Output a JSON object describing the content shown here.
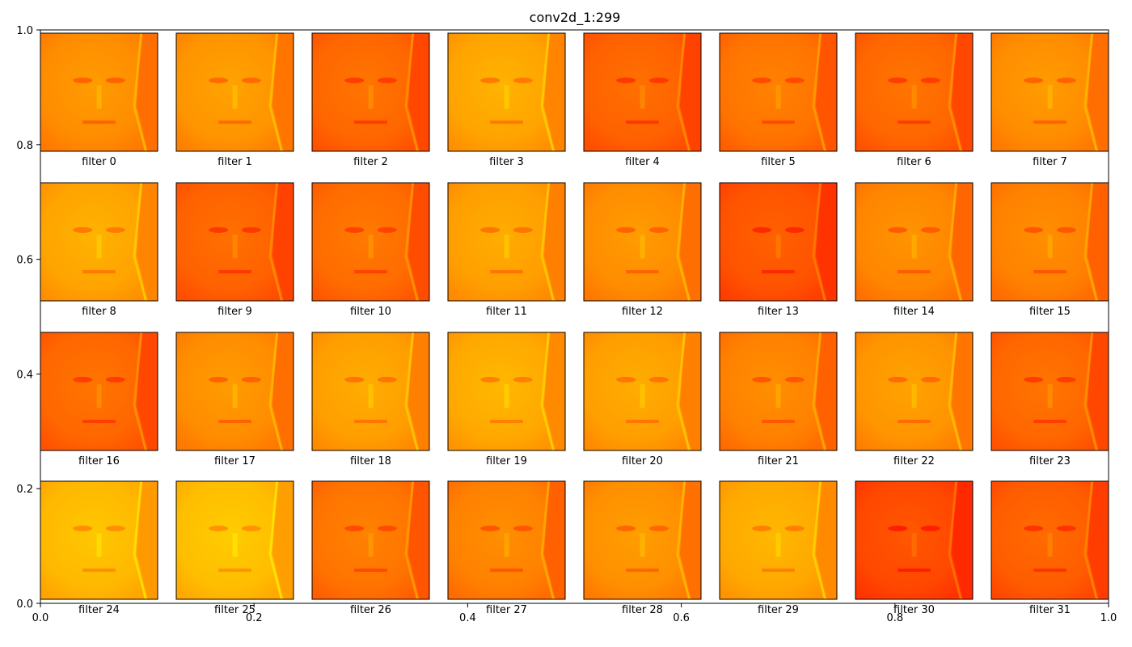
{
  "chart_data": {
    "type": "heatmap",
    "title": "conv2d_1:299",
    "xlabel": "",
    "ylabel": "",
    "xlim": [
      0.0,
      1.0
    ],
    "ylim": [
      0.0,
      1.0
    ],
    "x_ticks": [
      "0.0",
      "0.2",
      "0.4",
      "0.6",
      "0.8",
      "1.0"
    ],
    "y_ticks": [
      "0.0",
      "0.2",
      "0.4",
      "0.6",
      "0.8",
      "1.0"
    ],
    "grid": false,
    "colormap": "autumn",
    "colors": {
      "low": "#ff0000",
      "high": "#ffff00"
    },
    "subplot_rows": 4,
    "subplot_cols": 8,
    "panels": [
      {
        "label": "filter 0",
        "mean_level": 0.55
      },
      {
        "label": "filter 1",
        "mean_level": 0.58
      },
      {
        "label": "filter 2",
        "mean_level": 0.4
      },
      {
        "label": "filter 3",
        "mean_level": 0.64
      },
      {
        "label": "filter 4",
        "mean_level": 0.38
      },
      {
        "label": "filter 5",
        "mean_level": 0.45
      },
      {
        "label": "filter 6",
        "mean_level": 0.4
      },
      {
        "label": "filter 7",
        "mean_level": 0.55
      },
      {
        "label": "filter 8",
        "mean_level": 0.64
      },
      {
        "label": "filter 9",
        "mean_level": 0.38
      },
      {
        "label": "filter 10",
        "mean_level": 0.42
      },
      {
        "label": "filter 11",
        "mean_level": 0.62
      },
      {
        "label": "filter 12",
        "mean_level": 0.55
      },
      {
        "label": "filter 13",
        "mean_level": 0.32
      },
      {
        "label": "filter 14",
        "mean_level": 0.52
      },
      {
        "label": "filter 15",
        "mean_level": 0.5
      },
      {
        "label": "filter 16",
        "mean_level": 0.4
      },
      {
        "label": "filter 17",
        "mean_level": 0.55
      },
      {
        "label": "filter 18",
        "mean_level": 0.62
      },
      {
        "label": "filter 19",
        "mean_level": 0.66
      },
      {
        "label": "filter 20",
        "mean_level": 0.62
      },
      {
        "label": "filter 21",
        "mean_level": 0.5
      },
      {
        "label": "filter 22",
        "mean_level": 0.58
      },
      {
        "label": "filter 23",
        "mean_level": 0.4
      },
      {
        "label": "filter 24",
        "mean_level": 0.72
      },
      {
        "label": "filter 25",
        "mean_level": 0.74
      },
      {
        "label": "filter 26",
        "mean_level": 0.45
      },
      {
        "label": "filter 27",
        "mean_level": 0.5
      },
      {
        "label": "filter 28",
        "mean_level": 0.56
      },
      {
        "label": "filter 29",
        "mean_level": 0.66
      },
      {
        "label": "filter 30",
        "mean_level": 0.28
      },
      {
        "label": "filter 31",
        "mean_level": 0.36
      }
    ]
  }
}
